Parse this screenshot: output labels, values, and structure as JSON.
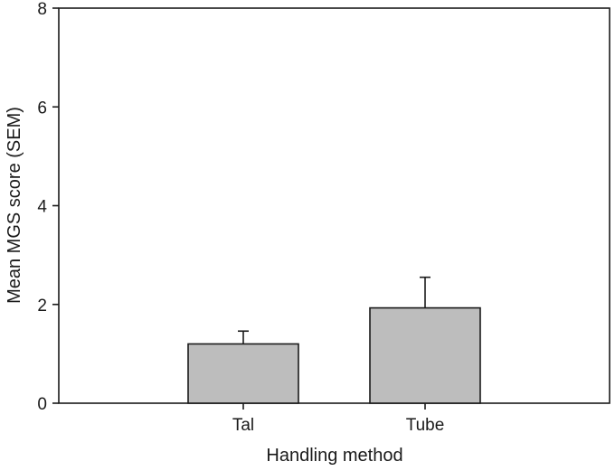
{
  "chart_data": {
    "type": "bar",
    "xlabel": "Handling method",
    "ylabel": "Mean MGS score (SEM)",
    "categories": [
      "Tal",
      "Tube"
    ],
    "values": [
      1.2,
      1.93
    ],
    "error_upper": [
      1.46,
      2.55
    ],
    "ylim": [
      0,
      8
    ],
    "yticks": [
      0,
      2,
      4,
      6,
      8
    ],
    "grid": false,
    "bar_color": "#bdbdbd",
    "edge_color": "#1a1a1a"
  }
}
